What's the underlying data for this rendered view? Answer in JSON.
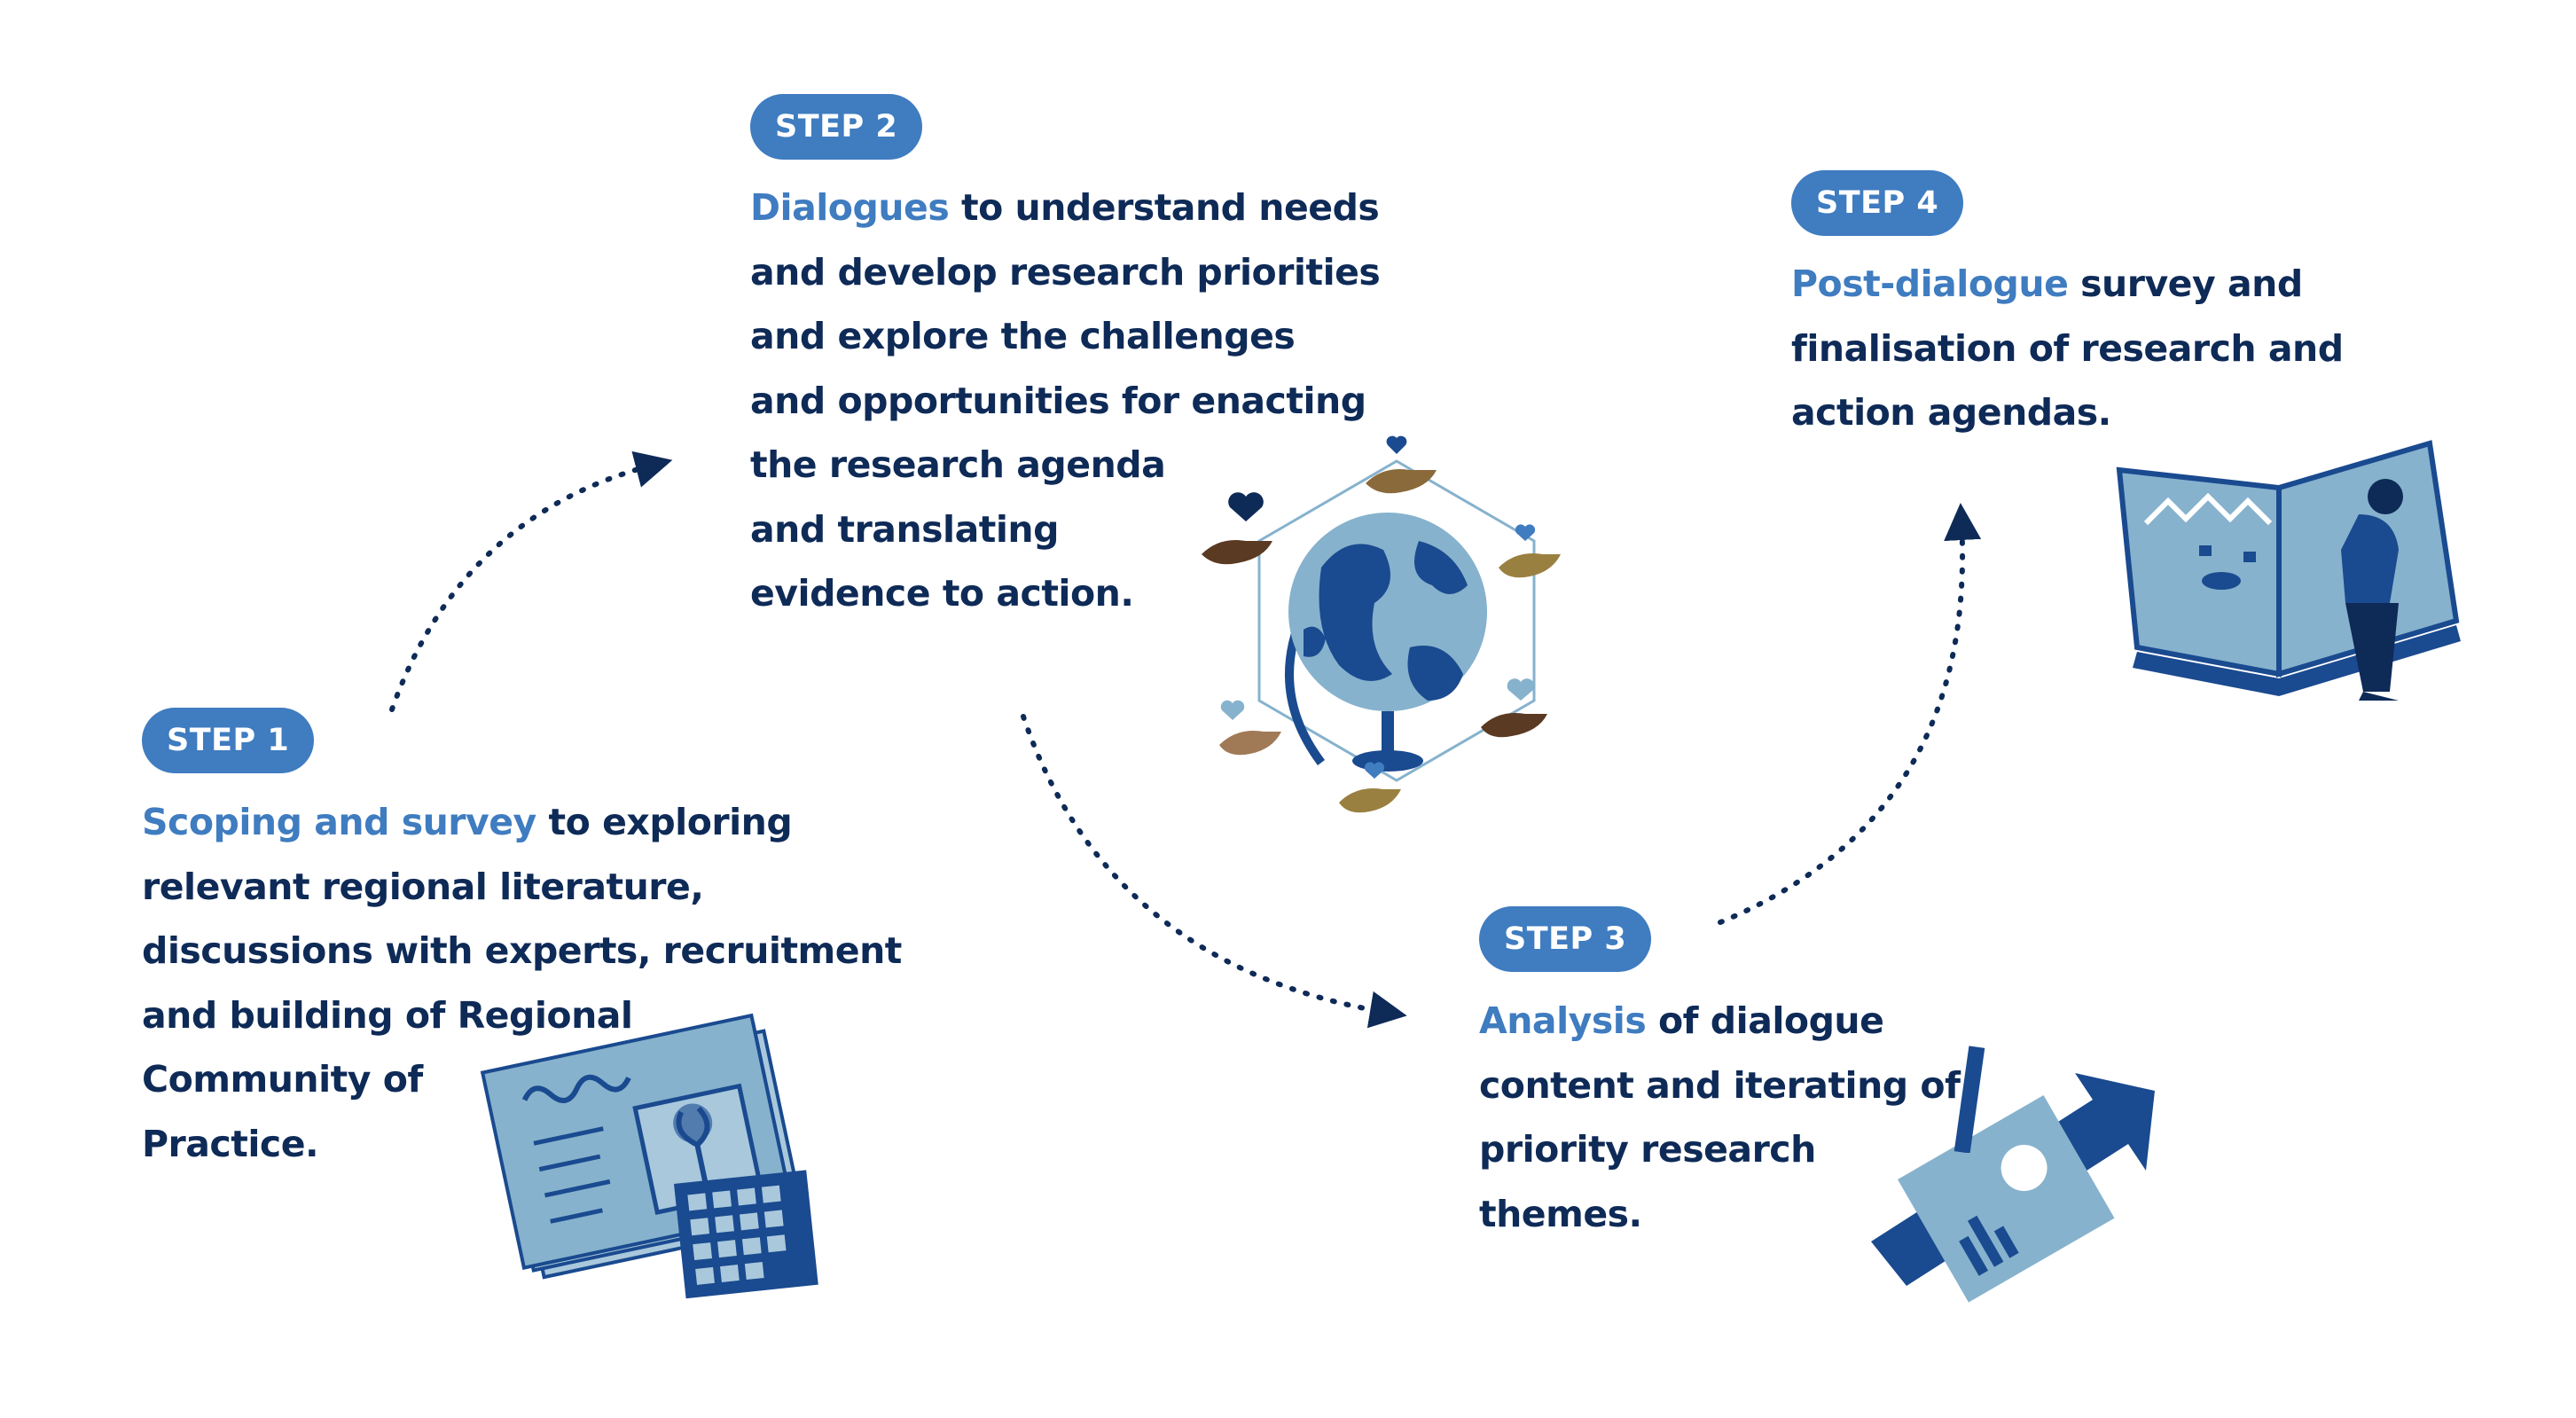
{
  "steps": [
    {
      "badge": "STEP 1",
      "highlight": "Scoping and survey",
      "lines": [
        " to exploring",
        "relevant regional literature,",
        "discussions with experts, recruitment",
        "and building of Regional",
        "Community of",
        "Practice."
      ]
    },
    {
      "badge": "STEP 2",
      "highlight": "Dialogues",
      "lines": [
        " to understand needs",
        "and develop research priorities",
        "and explore the challenges",
        "and opportunities for enacting",
        "the research agenda",
        "and translating",
        "evidence to action."
      ]
    },
    {
      "badge": "STEP 3",
      "highlight": "Analysis",
      "lines": [
        " of dialogue",
        "content and iterating of",
        "priority research",
        "themes."
      ]
    },
    {
      "badge": "STEP 4",
      "highlight": "Post-dialogue",
      "lines": [
        " survey and",
        "finalisation of research and",
        "action agendas."
      ]
    }
  ],
  "colors": {
    "accent": "#3f7cc0",
    "text": "#0e2a57",
    "arrow": "#0e2a57",
    "illustration_light": "#86b2cd",
    "illustration_dark": "#1a4a8f"
  },
  "icons": [
    "document-calendar-icon",
    "globe-hands-icon",
    "chart-arrow-icon",
    "open-book-person-icon"
  ]
}
